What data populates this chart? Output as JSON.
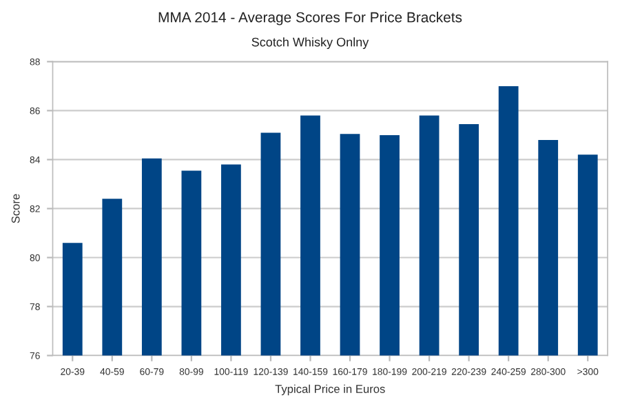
{
  "chart_data": {
    "type": "bar",
    "title": "MMA 2014 - Average Scores For Price Brackets",
    "subtitle": "Scotch Whisky Onlny",
    "xlabel": "Typical Price in Euros",
    "ylabel": "Score",
    "categories": [
      "20-39",
      "40-59",
      "60-79",
      "80-99",
      "100-119",
      "120-139",
      "140-159",
      "160-179",
      "180-199",
      "200-219",
      "220-239",
      "240-259",
      "280-300",
      ">300"
    ],
    "values": [
      80.6,
      82.4,
      84.05,
      83.55,
      83.8,
      85.1,
      85.8,
      85.05,
      85.0,
      85.8,
      85.45,
      87.0,
      84.8,
      84.2
    ],
    "color": "#004586",
    "ylim": [
      76,
      88
    ],
    "yticks": [
      76,
      78,
      80,
      82,
      84,
      86,
      88
    ],
    "grid": "y"
  }
}
